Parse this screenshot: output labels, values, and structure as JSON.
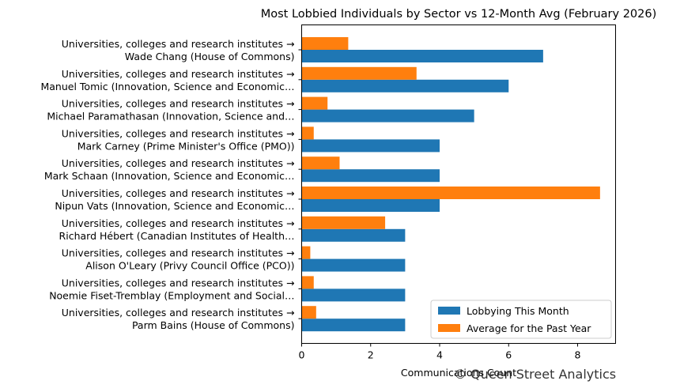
{
  "chart_data": {
    "type": "bar",
    "orientation": "horizontal",
    "title": "Most Lobbied Individuals by Sector vs 12-Month Avg (February 2026)",
    "xlabel": "Communications Count",
    "ylabel": "",
    "xlim": [
      0,
      9.1
    ],
    "xticks": [
      0,
      2,
      4,
      6,
      8
    ],
    "grid": false,
    "legend_position": "lower-right",
    "categories": [
      {
        "sector": "Universities, colleges and research institutes →",
        "name": "Wade Chang (House of Commons)"
      },
      {
        "sector": "Universities, colleges and research institutes →",
        "name": "Manuel Tomic (Innovation, Science and Economic…"
      },
      {
        "sector": "Universities, colleges and research institutes →",
        "name": "Michael Paramathasan (Innovation, Science and…"
      },
      {
        "sector": "Universities, colleges and research institutes →",
        "name": "Mark Carney (Prime Minister's Office (PMO))"
      },
      {
        "sector": "Universities, colleges and research institutes →",
        "name": "Mark Schaan (Innovation, Science and Economic…"
      },
      {
        "sector": "Universities, colleges and research institutes →",
        "name": "Nipun Vats (Innovation, Science and Economic…"
      },
      {
        "sector": "Universities, colleges and research institutes →",
        "name": "Richard Hébert (Canadian Institutes of Health…"
      },
      {
        "sector": "Universities, colleges and research institutes →",
        "name": "Alison O'Leary (Privy Council Office (PCO))"
      },
      {
        "sector": "Universities, colleges and research institutes →",
        "name": "Noemie Fiset-Tremblay (Employment and Social…"
      },
      {
        "sector": "Universities, colleges and research institutes →",
        "name": "Parm Bains (House of Commons)"
      }
    ],
    "series": [
      {
        "name": "Lobbying This Month",
        "color": "#1f77b4",
        "values": [
          7,
          6,
          5,
          4,
          4,
          4,
          3,
          3,
          3,
          3
        ]
      },
      {
        "name": "Average for the Past Year",
        "color": "#ff7f0e",
        "values": [
          1.35,
          3.33,
          0.75,
          0.35,
          1.1,
          8.65,
          2.42,
          0.25,
          0.35,
          0.42
        ]
      }
    ]
  },
  "watermark": "© Queen Street Analytics"
}
